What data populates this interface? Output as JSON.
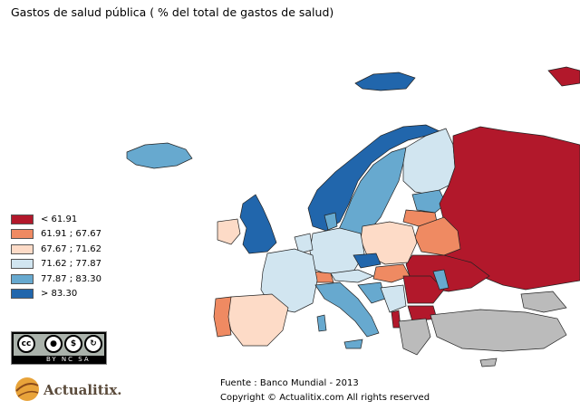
{
  "title": "Gastos de salud pública ( % del total de gastos de salud)",
  "legend": [
    {
      "label": "< 61.91",
      "color": "#b2182b"
    },
    {
      "label": "61.91 ; 67.67",
      "color": "#ef8a62"
    },
    {
      "label": "67.67 ; 71.62",
      "color": "#fddbc7"
    },
    {
      "label": "71.62 ; 77.87",
      "color": "#d1e5f0"
    },
    {
      "label": "77.87 ; 83.30",
      "color": "#67a9cf"
    },
    {
      "label": "> 83.30",
      "color": "#2166ac"
    }
  ],
  "no_data_color": "#bbbbbb",
  "license": {
    "tags": "BY NC SA",
    "cc": "cc"
  },
  "logo": {
    "text": "Actualitix."
  },
  "source": "Fuente : Banco Mundial - 2013",
  "copyright": "Copyright © Actualitix.com All rights reserved"
}
